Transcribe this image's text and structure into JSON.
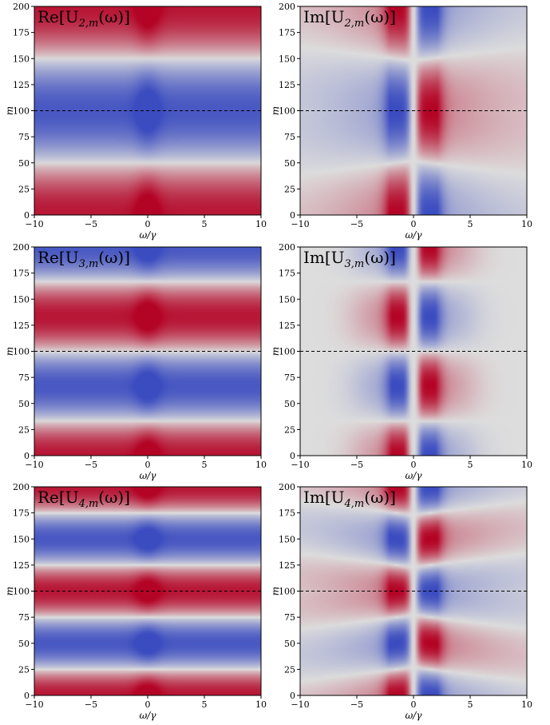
{
  "chart_data": [
    {
      "id": "re2",
      "type": "heatmap",
      "part": "Re",
      "order": 2,
      "title": "Re[U2,m(ω)]",
      "xlabel": "ω/γ",
      "ylabel": "m",
      "xlim": [
        -10,
        10
      ],
      "ylim": [
        0,
        200
      ],
      "xticks": [
        "−10",
        "−5",
        "0",
        "5",
        "10"
      ],
      "yticks": [
        "0",
        "25",
        "50",
        "75",
        "100",
        "125",
        "150",
        "175",
        "200"
      ],
      "reference_line_m": 100
    },
    {
      "id": "im2",
      "type": "heatmap",
      "part": "Im",
      "order": 2,
      "title": "Im[U2,m(ω)]",
      "xlabel": "ω/γ",
      "ylabel": "m",
      "xlim": [
        -10,
        10
      ],
      "ylim": [
        0,
        200
      ],
      "xticks": [
        "−10",
        "−5",
        "0",
        "5",
        "10"
      ],
      "yticks": [
        "0",
        "25",
        "50",
        "75",
        "100",
        "125",
        "150",
        "175",
        "200"
      ],
      "reference_line_m": 100
    },
    {
      "id": "re3",
      "type": "heatmap",
      "part": "Re",
      "order": 3,
      "title": "Re[U3,m(ω)]",
      "xlabel": "ω/γ",
      "ylabel": "m",
      "xlim": [
        -10,
        10
      ],
      "ylim": [
        0,
        200
      ],
      "xticks": [
        "−10",
        "−5",
        "0",
        "5",
        "10"
      ],
      "yticks": [
        "0",
        "25",
        "50",
        "75",
        "100",
        "125",
        "150",
        "175",
        "200"
      ],
      "reference_line_m": 100
    },
    {
      "id": "im3",
      "type": "heatmap",
      "part": "Im",
      "order": 3,
      "title": "Im[U3,m(ω)]",
      "xlabel": "ω/γ",
      "ylabel": "m",
      "xlim": [
        -10,
        10
      ],
      "ylim": [
        0,
        200
      ],
      "xticks": [
        "−10",
        "−5",
        "0",
        "5",
        "10"
      ],
      "yticks": [
        "0",
        "25",
        "50",
        "75",
        "100",
        "125",
        "150",
        "175",
        "200"
      ],
      "reference_line_m": 100
    },
    {
      "id": "re4",
      "type": "heatmap",
      "part": "Re",
      "order": 4,
      "title": "Re[U4,m(ω)]",
      "xlabel": "ω/γ",
      "ylabel": "m",
      "xlim": [
        -10,
        10
      ],
      "ylim": [
        0,
        200
      ],
      "xticks": [
        "−10",
        "−5",
        "0",
        "5",
        "10"
      ],
      "yticks": [
        "0",
        "25",
        "50",
        "75",
        "100",
        "125",
        "150",
        "175",
        "200"
      ],
      "reference_line_m": 100
    },
    {
      "id": "im4",
      "type": "heatmap",
      "part": "Im",
      "order": 4,
      "title": "Im[U4,m(ω)]",
      "xlabel": "ω/γ",
      "ylabel": "m",
      "xlim": [
        -10,
        10
      ],
      "ylim": [
        0,
        200
      ],
      "xticks": [
        "−10",
        "−5",
        "0",
        "5",
        "10"
      ],
      "yticks": [
        "0",
        "25",
        "50",
        "75",
        "100",
        "125",
        "150",
        "175",
        "200"
      ],
      "reference_line_m": 100
    }
  ],
  "colormap": {
    "name": "coolwarm",
    "low": "#3b4cc0",
    "mid": "#dddddd",
    "high": "#b40426"
  },
  "reference_line_color": "#000000"
}
